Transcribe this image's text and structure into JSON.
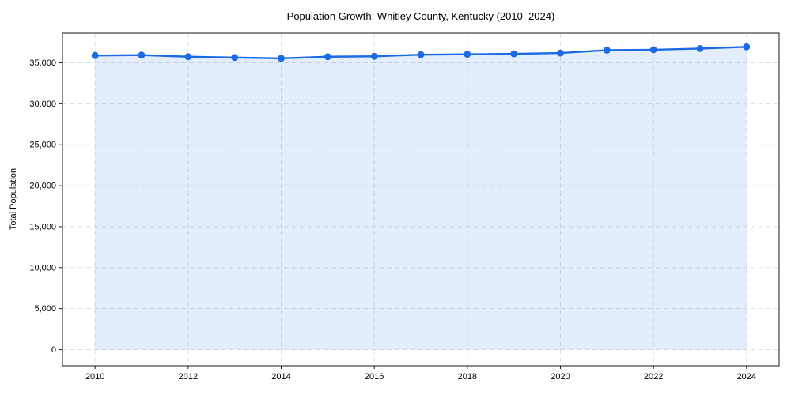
{
  "chart_data": {
    "type": "line",
    "title": "Population Growth: Whitley County, Kentucky (2010–2024)",
    "xlabel": "",
    "ylabel": "Total Population",
    "x": [
      2010,
      2011,
      2012,
      2013,
      2014,
      2015,
      2016,
      2017,
      2018,
      2019,
      2020,
      2021,
      2022,
      2023,
      2024
    ],
    "series": [
      {
        "name": "Total Population",
        "values": [
          35900,
          35950,
          35750,
          35650,
          35550,
          35750,
          35800,
          36000,
          36050,
          36100,
          36200,
          36550,
          36600,
          36750,
          36950
        ]
      }
    ],
    "xticks": [
      2010,
      2012,
      2014,
      2016,
      2018,
      2020,
      2022,
      2024
    ],
    "xtick_labels": [
      "2010",
      "2012",
      "2014",
      "2016",
      "2018",
      "2020",
      "2022",
      "2024"
    ],
    "yticks": [
      0,
      5000,
      10000,
      15000,
      20000,
      25000,
      30000,
      35000
    ],
    "ytick_labels": [
      "0",
      "5,000",
      "10,000",
      "15,000",
      "20,000",
      "25,000",
      "30,000",
      "35,000"
    ],
    "xlim": [
      2009.3,
      2024.7
    ],
    "ylim": [
      -1980,
      38620
    ],
    "grid": true,
    "grid_style": "dashed",
    "legend": false,
    "area_fill": true,
    "area_baseline": 0,
    "colors": {
      "line": "#1b6ae6",
      "marker": "#1b6ae6",
      "fill": "rgba(27,106,230,0.12)",
      "grid": "#dadfe6",
      "axis": "#1a1a1a",
      "text": "#000000",
      "background": "#ffffff"
    }
  }
}
